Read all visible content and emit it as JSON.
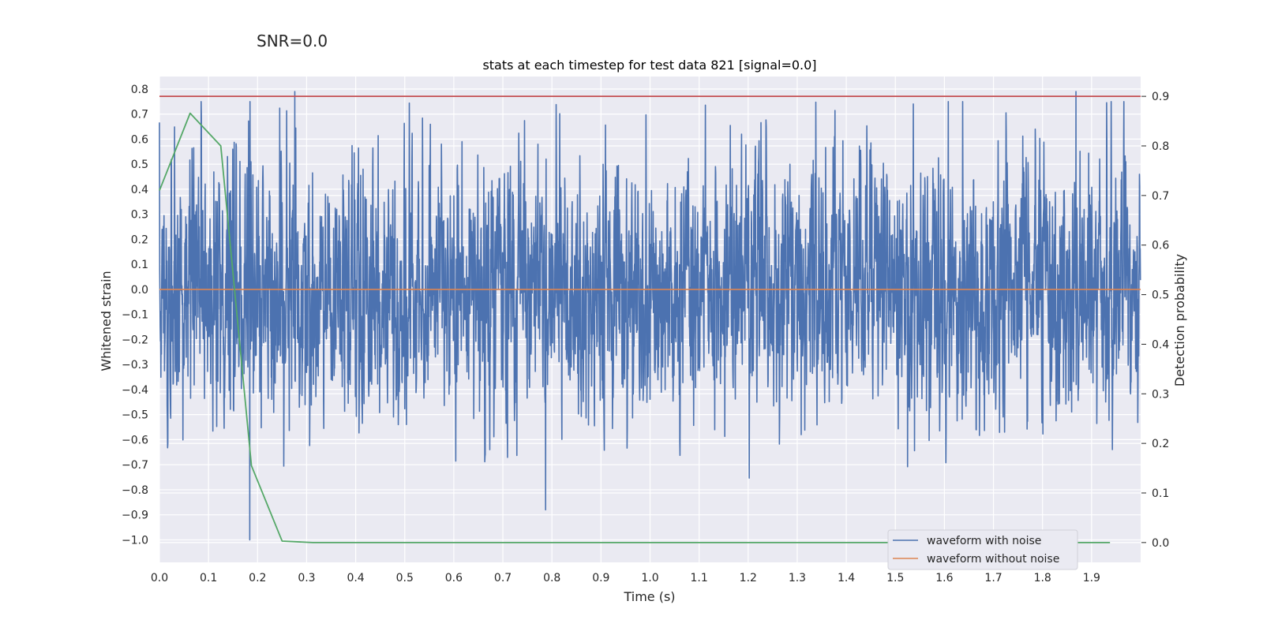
{
  "suptitle": "SNR=0.0",
  "chart_data": {
    "type": "line",
    "title": "stats at each timestep for test data 821 [signal=0.0]",
    "xlabel": "Time (s)",
    "ylabel": "Whitened strain",
    "y2label": "Detection probability",
    "xlim": [
      0.0,
      2.0
    ],
    "ylim": [
      -1.09,
      0.85
    ],
    "y2lim": [
      -0.04,
      0.94
    ],
    "xticks": [
      "0.0",
      "0.1",
      "0.2",
      "0.3",
      "0.4",
      "0.5",
      "0.6",
      "0.7",
      "0.8",
      "0.9",
      "1.0",
      "1.1",
      "1.2",
      "1.3",
      "1.4",
      "1.5",
      "1.6",
      "1.7",
      "1.8",
      "1.9"
    ],
    "yticks": [
      "0.8",
      "0.7",
      "0.6",
      "0.5",
      "0.4",
      "0.3",
      "0.2",
      "0.1",
      "0.0",
      "−0.1",
      "−0.2",
      "−0.3",
      "−0.4",
      "−0.5",
      "−0.6",
      "−0.7",
      "−0.8",
      "−0.9",
      "−1.0"
    ],
    "y2ticks": [
      "0.9",
      "0.8",
      "0.7",
      "0.6",
      "0.5",
      "0.4",
      "0.3",
      "0.2",
      "0.1",
      "0.0"
    ],
    "grid": true,
    "legend_position": "lower-right",
    "series": [
      {
        "name": "waveform with noise",
        "color": "#4c72b0",
        "axis": "left",
        "sample_rate": 2048,
        "duration": 2.0,
        "y_range": [
          -1.0,
          0.79
        ],
        "notable_points": [
          {
            "x": 0.184,
            "y": -1.0
          },
          {
            "x": 0.276,
            "y": 0.79
          },
          {
            "x": 0.787,
            "y": -0.88
          },
          {
            "x": 1.868,
            "y": 0.79
          }
        ]
      },
      {
        "name": "waveform without noise",
        "color": "#dd8452",
        "axis": "left",
        "x": [
          0.0,
          2.0
        ],
        "y": [
          0.0,
          0.0
        ]
      },
      {
        "color": "#55a868",
        "axis": "right",
        "x": [
          0.0,
          0.0625,
          0.125,
          0.1875,
          0.25,
          0.3125,
          0.375,
          0.4375,
          0.5,
          0.5625,
          0.625,
          0.6875,
          0.75,
          0.8125,
          0.875,
          0.9375,
          1.0,
          1.0625,
          1.125,
          1.1875,
          1.25,
          1.3125,
          1.375,
          1.4375,
          1.5,
          1.5625,
          1.625,
          1.6875,
          1.75,
          1.8125,
          1.875,
          1.9375
        ],
        "y": [
          0.71,
          0.866,
          0.8,
          0.155,
          0.003,
          0.0,
          0.0,
          0.0,
          0.0,
          0.0,
          0.0,
          0.0,
          0.0,
          0.0,
          0.0,
          0.0,
          0.0,
          0.0,
          0.0,
          0.0,
          0.0,
          0.0,
          0.0,
          0.0,
          0.0,
          0.0,
          0.0,
          0.0,
          0.0,
          0.0,
          0.0,
          0.0
        ]
      },
      {
        "color": "#c44e52",
        "axis": "right",
        "x": [
          0.0,
          2.0
        ],
        "y": [
          0.9,
          0.9
        ]
      }
    ]
  }
}
